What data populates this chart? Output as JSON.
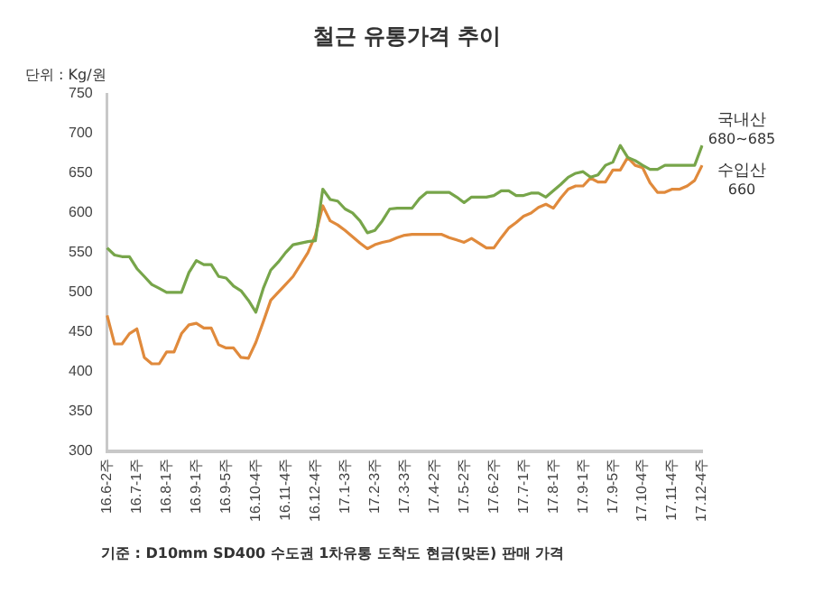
{
  "chart_data": {
    "type": "line",
    "title": "철근 유통가격 추이",
    "ylabel": "단위 : Kg/원",
    "categories": [
      "16.6-2주",
      null,
      null,
      null,
      "16.7-1주",
      null,
      null,
      null,
      "16.8-1주",
      null,
      null,
      null,
      "16.9-1주",
      null,
      null,
      null,
      "16.9-5주",
      null,
      null,
      null,
      "16.10-4주",
      null,
      null,
      null,
      "16.11-4주",
      null,
      null,
      null,
      "16.12-4주",
      null,
      null,
      null,
      "17.1-3주",
      null,
      null,
      null,
      "17.2-3주",
      null,
      null,
      null,
      "17.3-3주",
      null,
      null,
      null,
      "17.4-2주",
      null,
      null,
      null,
      "17.5-2주",
      null,
      null,
      null,
      "17.6-2주",
      null,
      null,
      null,
      "17.7-1주",
      null,
      null,
      null,
      "17.8-1주",
      null,
      null,
      null,
      "17.9-1주",
      null,
      null,
      null,
      "17.9-5주",
      null,
      null,
      null,
      "17.10-4주",
      null,
      null,
      null,
      "17.11-4주",
      null,
      null,
      null,
      "17.12-4주"
    ],
    "series": [
      {
        "name": "국내산",
        "color": "#77a54a",
        "values": [
          556,
          547,
          545,
          545,
          530,
          520,
          510,
          505,
          500,
          500,
          500,
          525,
          540,
          535,
          535,
          520,
          518,
          508,
          502,
          490,
          475,
          505,
          528,
          538,
          550,
          560,
          562,
          564,
          565,
          630,
          617,
          615,
          605,
          600,
          590,
          575,
          578,
          590,
          605,
          606,
          606,
          606,
          618,
          626,
          626,
          626,
          626,
          620,
          613,
          620,
          620,
          620,
          622,
          628,
          628,
          622,
          622,
          625,
          625,
          620,
          628,
          636,
          645,
          650,
          652,
          645,
          648,
          660,
          664,
          685,
          670,
          666,
          660,
          655,
          655,
          660,
          660,
          660,
          660,
          660,
          685
        ]
      },
      {
        "name": "수입산",
        "color": "#e08a3c",
        "values": [
          471,
          435,
          435,
          448,
          454,
          418,
          410,
          410,
          425,
          425,
          448,
          459,
          461,
          455,
          455,
          434,
          430,
          430,
          418,
          417,
          437,
          463,
          490,
          500,
          510,
          520,
          535,
          550,
          572,
          609,
          590,
          585,
          578,
          570,
          562,
          555,
          560,
          563,
          565,
          569,
          572,
          573,
          573,
          573,
          573,
          573,
          569,
          566,
          563,
          568,
          562,
          556,
          556,
          569,
          581,
          588,
          596,
          600,
          607,
          611,
          606,
          619,
          630,
          634,
          634,
          644,
          639,
          639,
          654,
          654,
          670,
          660,
          657,
          638,
          626,
          626,
          630,
          630,
          634,
          641,
          660
        ]
      }
    ],
    "ylim": [
      300,
      750
    ],
    "yticks": [
      300,
      350,
      400,
      450,
      500,
      550,
      600,
      650,
      700,
      750
    ],
    "marker": "none",
    "legend": false,
    "annotations": [
      {
        "text": "680~685",
        "x": "17.12-4주",
        "y": 685
      },
      {
        "text": "660",
        "x": "17.12-4주",
        "y": 660
      },
      "기준 : D10mm SD400 수도권 1차유통 도착도 현금(맞돈) 판매 가격"
    ]
  }
}
